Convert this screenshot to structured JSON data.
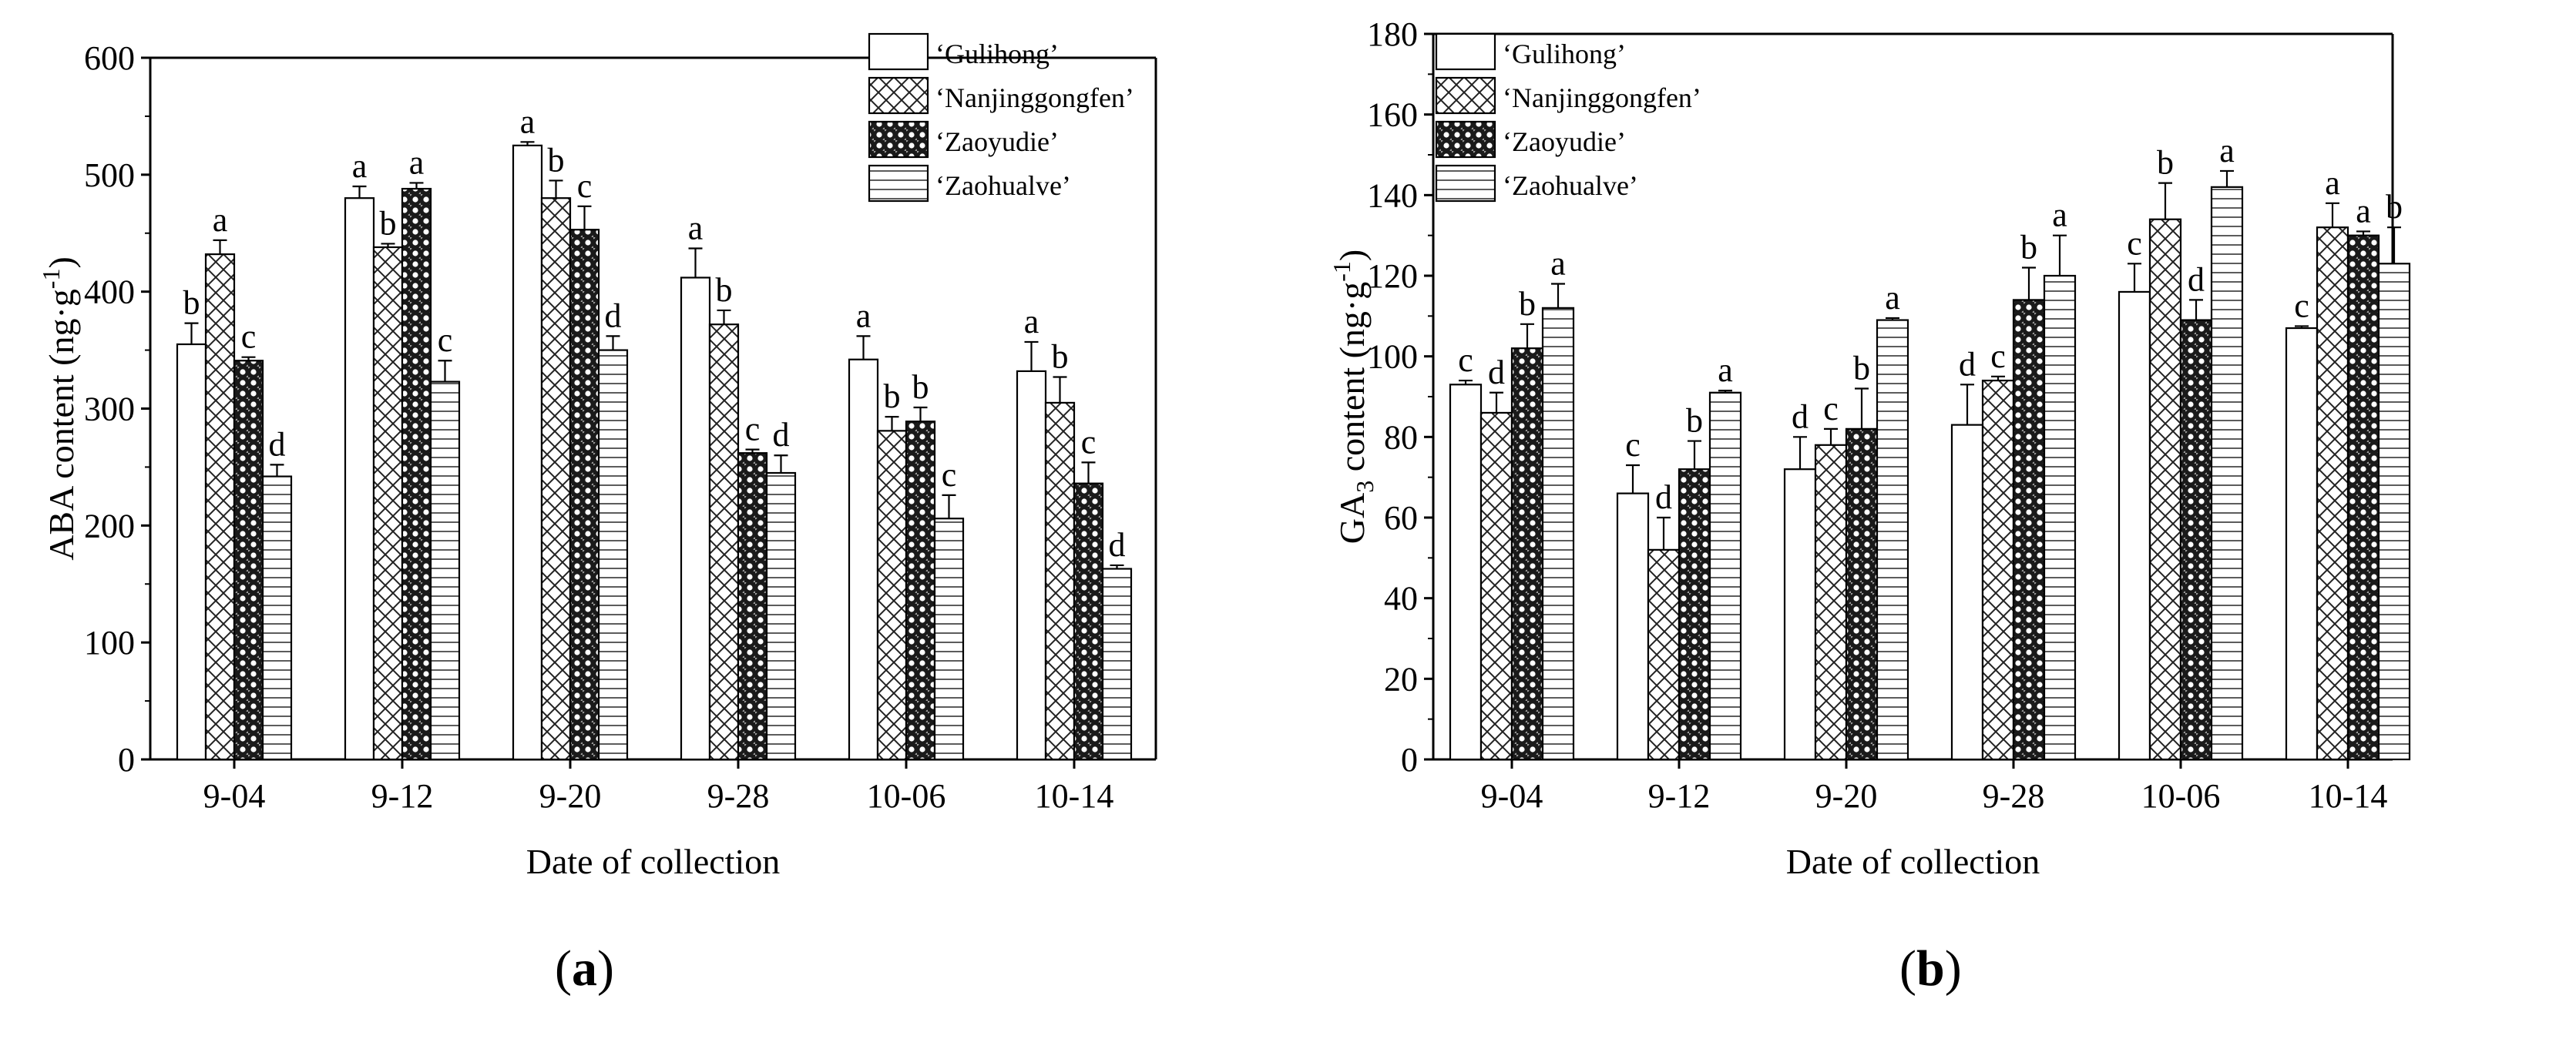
{
  "chart_data": [
    {
      "type": "bar",
      "panel_label": "a",
      "xlabel": "Date of collection",
      "ylabel_main": "ABA  content (ng·g",
      "ylabel_sup": "-1",
      "ylabel_end": ")",
      "ylim": [
        0,
        600
      ],
      "yticks": [
        0,
        100,
        200,
        300,
        400,
        500,
        600
      ],
      "categories": [
        "9-04",
        "9-12",
        "9-20",
        "9-28",
        "10-06",
        "10-14"
      ],
      "legend_position": "top-right",
      "series": [
        {
          "name": "‘Gulihong’",
          "pattern": "blank",
          "values": [
            355,
            480,
            525,
            412,
            342,
            332
          ],
          "errors": [
            18,
            10,
            3,
            25,
            20,
            25
          ],
          "letters": [
            "b",
            "a",
            "a",
            "a",
            "a",
            "a"
          ]
        },
        {
          "name": "‘Nanjinggongfen’",
          "pattern": "crosshatch",
          "values": [
            432,
            438,
            480,
            372,
            281,
            305
          ],
          "errors": [
            12,
            3,
            15,
            12,
            12,
            22
          ],
          "letters": [
            "a",
            "b",
            "b",
            "b",
            "b",
            "b"
          ]
        },
        {
          "name": "‘Zaoyudie’",
          "pattern": "dots",
          "values": [
            341,
            488,
            453,
            262,
            289,
            236
          ],
          "errors": [
            3,
            5,
            20,
            3,
            12,
            18
          ],
          "letters": [
            "c",
            "a",
            "c",
            "c",
            "b",
            "c"
          ]
        },
        {
          "name": "‘Zaohualve’",
          "pattern": "hlines",
          "values": [
            242,
            323,
            350,
            245,
            206,
            163
          ],
          "errors": [
            10,
            18,
            12,
            15,
            20,
            3
          ],
          "letters": [
            "d",
            "c",
            "d",
            "d",
            "c",
            "d"
          ]
        }
      ]
    },
    {
      "type": "bar",
      "panel_label": "b",
      "xlabel": "Date of collection",
      "ylabel_main": "GA",
      "ylabel_sub": "3",
      "ylabel_rest": " content (ng·g",
      "ylabel_sup": "-1",
      "ylabel_end": ")",
      "ylim": [
        0,
        180
      ],
      "yticks": [
        0,
        20,
        40,
        60,
        80,
        100,
        120,
        140,
        160,
        180
      ],
      "categories": [
        "9-04",
        "9-12",
        "9-20",
        "9-28",
        "10-06",
        "10-14"
      ],
      "legend_position": "top-left",
      "series": [
        {
          "name": "‘Gulihong’",
          "pattern": "blank",
          "values": [
            93,
            66,
            72,
            83,
            116,
            107
          ],
          "errors": [
            1,
            7,
            8,
            10,
            7,
            0.5
          ],
          "letters": [
            "c",
            "c",
            "d",
            "d",
            "c",
            "c"
          ]
        },
        {
          "name": "‘Nanjinggongfen’",
          "pattern": "crosshatch",
          "values": [
            86,
            52,
            78,
            94,
            134,
            132
          ],
          "errors": [
            5,
            8,
            4,
            1,
            9,
            6
          ],
          "letters": [
            "d",
            "d",
            "c",
            "c",
            "b",
            "a"
          ]
        },
        {
          "name": "‘Zaoyudie’",
          "pattern": "dots",
          "values": [
            102,
            72,
            82,
            114,
            109,
            130
          ],
          "errors": [
            6,
            7,
            10,
            8,
            5,
            1
          ],
          "letters": [
            "b",
            "b",
            "b",
            "b",
            "d",
            "a"
          ]
        },
        {
          "name": "‘Zaohualve’",
          "pattern": "hlines",
          "values": [
            112,
            91,
            109,
            120,
            142,
            123
          ],
          "errors": [
            6,
            0.5,
            0.5,
            10,
            4,
            9
          ],
          "letters": [
            "a",
            "a",
            "a",
            "a",
            "a",
            "b"
          ]
        }
      ]
    }
  ]
}
